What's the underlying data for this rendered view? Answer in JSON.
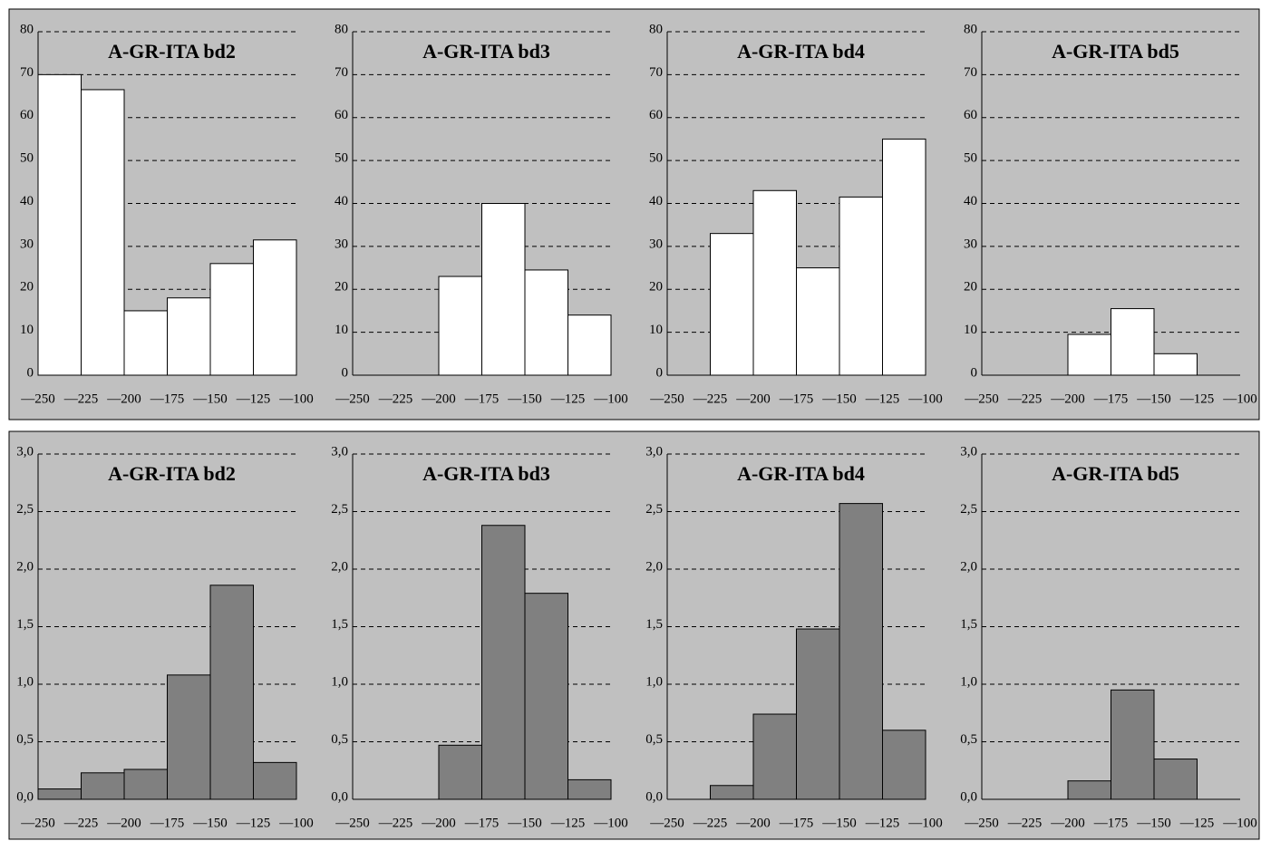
{
  "chart_data": [
    {
      "type": "histogram",
      "title": "A-GR-ITA bd2",
      "bins": [
        -250,
        -225,
        -200,
        -175,
        -150,
        -125,
        -100
      ],
      "values": [
        70,
        66.5,
        15,
        18,
        26,
        31.5
      ],
      "color": "#ffffff",
      "xlim": [
        -250,
        -100
      ],
      "xticks": [
        {
          "value": -250,
          "label": "—250"
        },
        {
          "value": -225,
          "label": "—225"
        },
        {
          "value": -200,
          "label": "—200"
        },
        {
          "value": -175,
          "label": "—175"
        },
        {
          "value": -150,
          "label": "—150"
        },
        {
          "value": -125,
          "label": "—125"
        },
        {
          "value": -100,
          "label": "—100"
        }
      ],
      "ylim": [
        0,
        80
      ],
      "yticks": [
        0,
        10,
        20,
        30,
        40,
        50,
        60,
        70,
        80
      ],
      "grid": true
    },
    {
      "type": "histogram",
      "title": "A-GR-ITA bd3",
      "bins": [
        -250,
        -225,
        -200,
        -175,
        -150,
        -125,
        -100
      ],
      "values": [
        0,
        0,
        23,
        40,
        24.5,
        14
      ],
      "color": "#ffffff",
      "xlim": [
        -250,
        -100
      ],
      "xticks": [
        {
          "value": -250,
          "label": "—250"
        },
        {
          "value": -225,
          "label": "—225"
        },
        {
          "value": -200,
          "label": "—200"
        },
        {
          "value": -175,
          "label": "—175"
        },
        {
          "value": -150,
          "label": "—150"
        },
        {
          "value": -125,
          "label": "—125"
        },
        {
          "value": -100,
          "label": "—100"
        }
      ],
      "ylim": [
        0,
        80
      ],
      "yticks": [
        0,
        10,
        20,
        30,
        40,
        50,
        60,
        70,
        80
      ],
      "grid": true
    },
    {
      "type": "histogram",
      "title": "A-GR-ITA bd4",
      "bins": [
        -250,
        -225,
        -200,
        -175,
        -150,
        -125,
        -100
      ],
      "values": [
        0,
        33,
        43,
        25,
        41.5,
        55
      ],
      "color": "#ffffff",
      "xlim": [
        -250,
        -100
      ],
      "xticks": [
        {
          "value": -250,
          "label": "—250"
        },
        {
          "value": -225,
          "label": "—225"
        },
        {
          "value": -200,
          "label": "—200"
        },
        {
          "value": -175,
          "label": "—175"
        },
        {
          "value": -150,
          "label": "—150"
        },
        {
          "value": -125,
          "label": "—125"
        },
        {
          "value": -100,
          "label": "—100"
        }
      ],
      "ylim": [
        0,
        80
      ],
      "yticks": [
        0,
        10,
        20,
        30,
        40,
        50,
        60,
        70,
        80
      ],
      "grid": true
    },
    {
      "type": "histogram",
      "title": "A-GR-ITA bd5",
      "bins": [
        -250,
        -225,
        -200,
        -175,
        -150,
        -125,
        -100
      ],
      "values": [
        0,
        0,
        9.5,
        15.5,
        5,
        0
      ],
      "color": "#ffffff",
      "xlim": [
        -250,
        -100
      ],
      "xticks": [
        {
          "value": -250,
          "label": "—250"
        },
        {
          "value": -225,
          "label": "—225"
        },
        {
          "value": -200,
          "label": "—200"
        },
        {
          "value": -175,
          "label": "—175"
        },
        {
          "value": -150,
          "label": "—150"
        },
        {
          "value": -125,
          "label": "—125"
        },
        {
          "value": -100,
          "label": "—100"
        }
      ],
      "ylim": [
        0,
        80
      ],
      "yticks": [
        0,
        10,
        20,
        30,
        40,
        50,
        60,
        70,
        80
      ],
      "grid": true
    },
    {
      "type": "histogram",
      "title": "A-GR-ITA bd2",
      "bins": [
        -250,
        -225,
        -200,
        -175,
        -150,
        -125,
        -100
      ],
      "values": [
        0.09,
        0.23,
        0.26,
        1.08,
        1.86,
        0.32
      ],
      "color": "#808080",
      "xlim": [
        -250,
        -100
      ],
      "xticks": [
        {
          "value": -250,
          "label": "—250"
        },
        {
          "value": -225,
          "label": "—225"
        },
        {
          "value": -200,
          "label": "—200"
        },
        {
          "value": -175,
          "label": "—175"
        },
        {
          "value": -150,
          "label": "—150"
        },
        {
          "value": -125,
          "label": "—125"
        },
        {
          "value": -100,
          "label": "—100"
        }
      ],
      "ylim": [
        0,
        3
      ],
      "yticks": [
        {
          "value": 0,
          "label": "0,0"
        },
        {
          "value": 0.5,
          "label": "0,5"
        },
        {
          "value": 1,
          "label": "1,0"
        },
        {
          "value": 1.5,
          "label": "1,5"
        },
        {
          "value": 2,
          "label": "2,0"
        },
        {
          "value": 2.5,
          "label": "2,5"
        },
        {
          "value": 3,
          "label": "3,0"
        }
      ],
      "grid": true
    },
    {
      "type": "histogram",
      "title": "A-GR-ITA bd3",
      "bins": [
        -250,
        -225,
        -200,
        -175,
        -150,
        -125,
        -100
      ],
      "values": [
        0,
        0,
        0.47,
        2.38,
        1.79,
        0.17
      ],
      "color": "#808080",
      "xlim": [
        -250,
        -100
      ],
      "xticks": [
        {
          "value": -250,
          "label": "—250"
        },
        {
          "value": -225,
          "label": "—225"
        },
        {
          "value": -200,
          "label": "—200"
        },
        {
          "value": -175,
          "label": "—175"
        },
        {
          "value": -150,
          "label": "—150"
        },
        {
          "value": -125,
          "label": "—125"
        },
        {
          "value": -100,
          "label": "—100"
        }
      ],
      "ylim": [
        0,
        3
      ],
      "yticks": [
        {
          "value": 0,
          "label": "0,0"
        },
        {
          "value": 0.5,
          "label": "0,5"
        },
        {
          "value": 1,
          "label": "1,0"
        },
        {
          "value": 1.5,
          "label": "1,5"
        },
        {
          "value": 2,
          "label": "2,0"
        },
        {
          "value": 2.5,
          "label": "2,5"
        },
        {
          "value": 3,
          "label": "3,0"
        }
      ],
      "grid": true
    },
    {
      "type": "histogram",
      "title": "A-GR-ITA bd4",
      "bins": [
        -250,
        -225,
        -200,
        -175,
        -150,
        -125,
        -100
      ],
      "values": [
        0,
        0.12,
        0.74,
        1.48,
        2.57,
        0.6
      ],
      "color": "#808080",
      "xlim": [
        -250,
        -100
      ],
      "xticks": [
        {
          "value": -250,
          "label": "—250"
        },
        {
          "value": -225,
          "label": "—225"
        },
        {
          "value": -200,
          "label": "—200"
        },
        {
          "value": -175,
          "label": "—175"
        },
        {
          "value": -150,
          "label": "—150"
        },
        {
          "value": -125,
          "label": "—125"
        },
        {
          "value": -100,
          "label": "—100"
        }
      ],
      "ylim": [
        0,
        3
      ],
      "yticks": [
        {
          "value": 0,
          "label": "0,0"
        },
        {
          "value": 0.5,
          "label": "0,5"
        },
        {
          "value": 1,
          "label": "1,0"
        },
        {
          "value": 1.5,
          "label": "1,5"
        },
        {
          "value": 2,
          "label": "2,0"
        },
        {
          "value": 2.5,
          "label": "2,5"
        },
        {
          "value": 3,
          "label": "3,0"
        }
      ],
      "grid": true
    },
    {
      "type": "histogram",
      "title": "A-GR-ITA bd5",
      "bins": [
        -250,
        -225,
        -200,
        -175,
        -150,
        -125,
        -100
      ],
      "values": [
        0,
        0,
        0.16,
        0.95,
        0.35,
        0
      ],
      "color": "#808080",
      "xlim": [
        -250,
        -100
      ],
      "xticks": [
        {
          "value": -250,
          "label": "—250"
        },
        {
          "value": -225,
          "label": "—225"
        },
        {
          "value": -200,
          "label": "—200"
        },
        {
          "value": -175,
          "label": "—175"
        },
        {
          "value": -150,
          "label": "—150"
        },
        {
          "value": -125,
          "label": "—125"
        },
        {
          "value": -100,
          "label": "—100"
        }
      ],
      "ylim": [
        0,
        3
      ],
      "yticks": [
        {
          "value": 0,
          "label": "0,0"
        },
        {
          "value": 0.5,
          "label": "0,5"
        },
        {
          "value": 1,
          "label": "1,0"
        },
        {
          "value": 1.5,
          "label": "1,5"
        },
        {
          "value": 2,
          "label": "2,0"
        },
        {
          "value": 2.5,
          "label": "2,5"
        },
        {
          "value": 3,
          "label": "3,0"
        }
      ],
      "grid": true
    }
  ]
}
